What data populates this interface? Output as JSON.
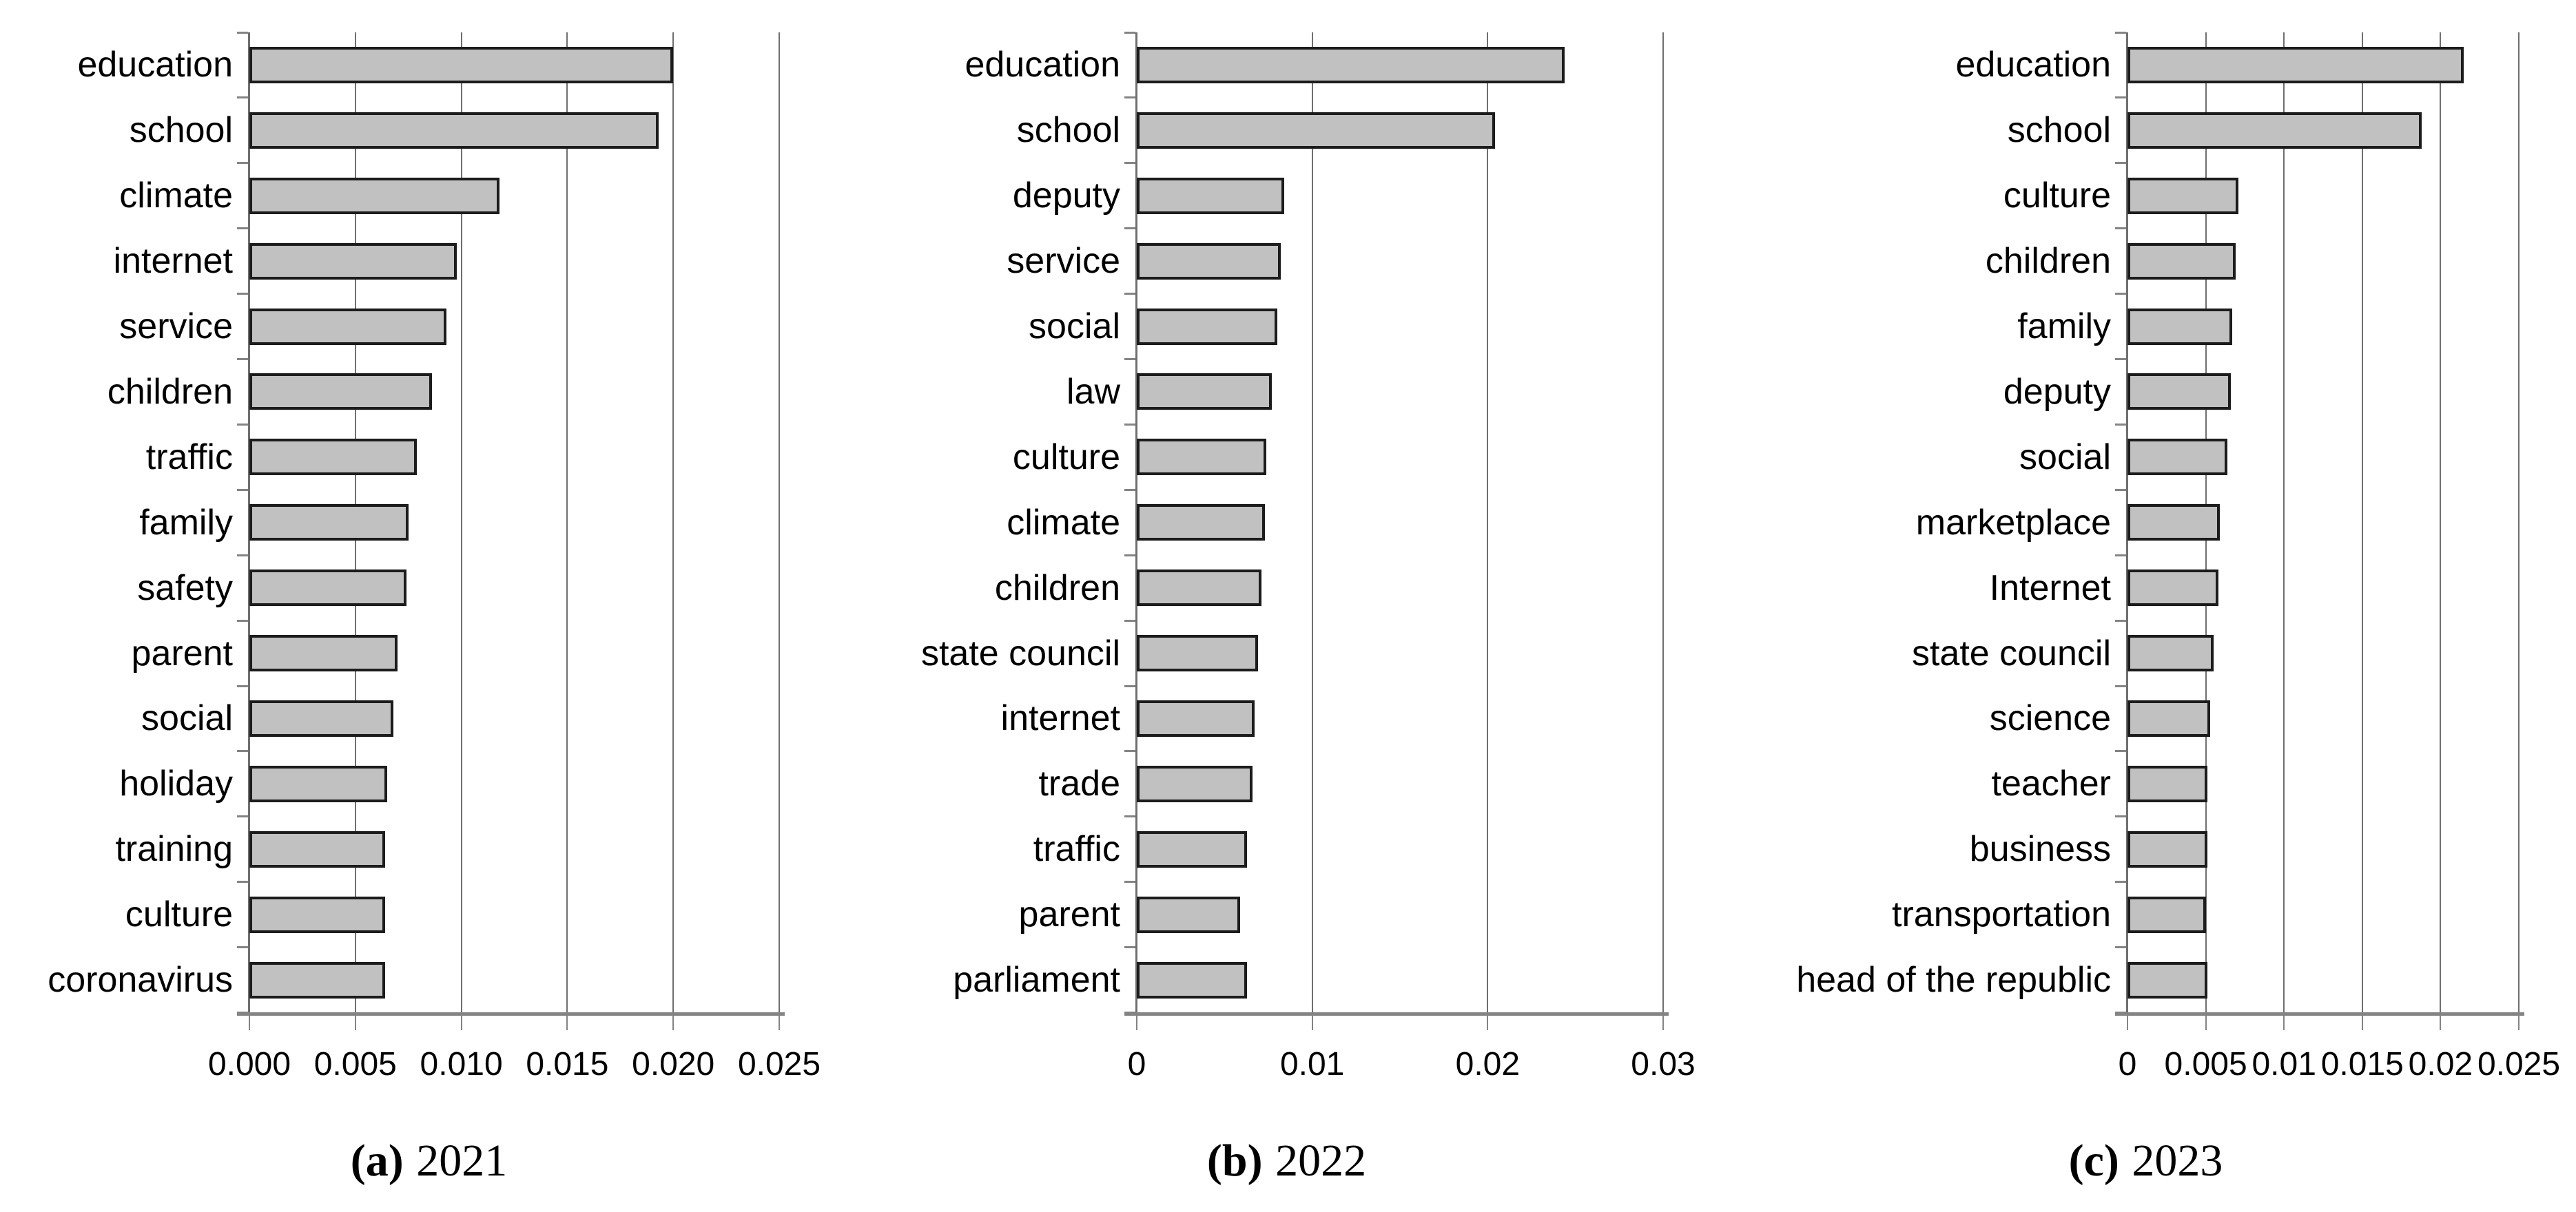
{
  "figure": {
    "description": "Three horizontal bar charts of word frequencies by year",
    "style": {
      "bar_fill": "#c1c1c1",
      "bar_border": "#1c1c1c",
      "gridline_color": "#6f6f6f",
      "axis_color": "#848484",
      "text_color": "#000000",
      "background": "#ffffff"
    }
  },
  "chart_data": [
    {
      "type": "bar",
      "orientation": "horizontal",
      "caption_prefix": "(a)",
      "caption_year": "2021",
      "categories": [
        "education",
        "school",
        "climate",
        "internet",
        "service",
        "children",
        "traffic",
        "family",
        "safety",
        "parent",
        "social",
        "holiday",
        "training",
        "culture",
        "coronavirus"
      ],
      "values": [
        0.02,
        0.0193,
        0.0118,
        0.0098,
        0.0093,
        0.0086,
        0.0079,
        0.0075,
        0.0074,
        0.007,
        0.0068,
        0.0065,
        0.0064,
        0.0064,
        0.0064
      ],
      "xlim": [
        0,
        0.025
      ],
      "xticks": [
        0,
        0.005,
        0.01,
        0.015,
        0.02,
        0.025
      ],
      "xtick_labels": [
        "0.000",
        "0.005",
        "0.010",
        "0.015",
        "0.020",
        "0.025"
      ],
      "xlabel": "",
      "ylabel": "",
      "grid": true,
      "legend": false
    },
    {
      "type": "bar",
      "orientation": "horizontal",
      "caption_prefix": "(b)",
      "caption_year": "2022",
      "categories": [
        "education",
        "school",
        "deputy",
        "service",
        "social",
        "law",
        "culture",
        "climate",
        "children",
        "state council",
        "internet",
        "trade",
        "traffic",
        "parent",
        "parliament"
      ],
      "values": [
        0.0244,
        0.0204,
        0.0084,
        0.0082,
        0.008,
        0.0077,
        0.0074,
        0.0073,
        0.0071,
        0.0069,
        0.0067,
        0.0066,
        0.0063,
        0.0059,
        0.0063
      ],
      "xlim": [
        0,
        0.03
      ],
      "xticks": [
        0,
        0.01,
        0.02,
        0.03
      ],
      "xtick_labels": [
        "0",
        "0.01",
        "0.02",
        "0.03"
      ],
      "xlabel": "",
      "ylabel": "",
      "grid": true,
      "legend": false
    },
    {
      "type": "bar",
      "orientation": "horizontal",
      "caption_prefix": "(c)",
      "caption_year": "2023",
      "categories": [
        "education",
        "school",
        "culture",
        "children",
        "family",
        "deputy",
        "social",
        "marketplace",
        "Internet",
        "state council",
        "science",
        "teacher",
        "business",
        "transportation",
        "head of the republic"
      ],
      "values": [
        0.0215,
        0.0188,
        0.0071,
        0.0069,
        0.0067,
        0.0066,
        0.0064,
        0.0059,
        0.0058,
        0.0055,
        0.0053,
        0.0051,
        0.0051,
        0.005,
        0.0051
      ],
      "xlim": [
        0,
        0.025
      ],
      "xticks": [
        0,
        0.005,
        0.01,
        0.015,
        0.02,
        0.025
      ],
      "xtick_labels": [
        "0",
        "0.005",
        "0.01",
        "0.015",
        "0.02",
        "0.025"
      ],
      "xlabel": "",
      "ylabel": "",
      "grid": true,
      "legend": false
    }
  ]
}
